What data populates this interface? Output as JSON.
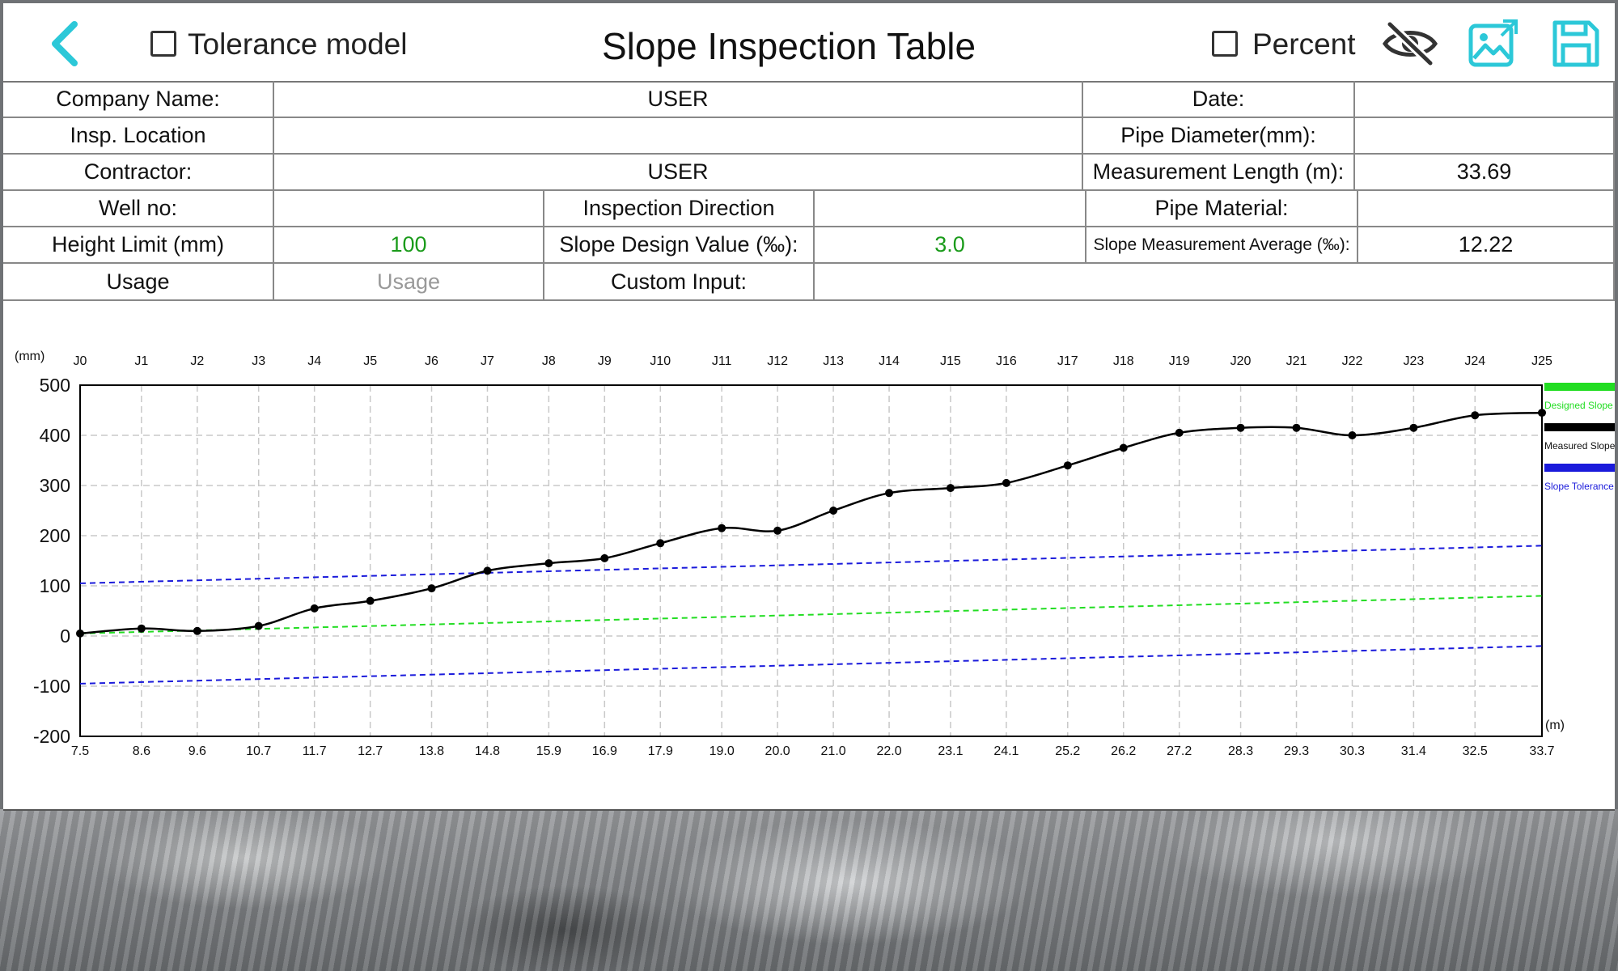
{
  "header": {
    "tolerance_label": "Tolerance model",
    "title": "Slope Inspection Table",
    "percent_label": "Percent",
    "accent": "#2cc8d8"
  },
  "info": {
    "company_label": "Company Name:",
    "company_value": "USER",
    "date_label": "Date:",
    "date_value": "",
    "location_label": "Insp. Location",
    "location_value": "",
    "pipe_diameter_label": "Pipe Diameter(mm):",
    "pipe_diameter_value": "",
    "contractor_label": "Contractor:",
    "contractor_value": "USER",
    "measurement_length_label": "Measurement Length (m):",
    "measurement_length_value": "33.69",
    "well_label": "Well no:",
    "well_value": "",
    "direction_label": "Inspection Direction",
    "direction_value": "",
    "pipe_material_label": "Pipe Material:",
    "pipe_material_value": "",
    "height_limit_label": "Height Limit (mm)",
    "height_limit_value": "100",
    "slope_design_label": "Slope Design Value (‰):",
    "slope_design_value": "3.0",
    "slope_avg_label": "Slope Measurement Average (‰):",
    "slope_avg_value": "12.22",
    "usage_label": "Usage",
    "usage_placeholder": "Usage",
    "custom_label": "Custom Input:",
    "custom_value": ""
  },
  "chart_data": {
    "type": "line",
    "y_unit": "(mm)",
    "x_unit": "(m)",
    "ylim": [
      -200,
      500
    ],
    "yticks": [
      500,
      400,
      300,
      200,
      100,
      0,
      -100,
      -200
    ],
    "grid": true,
    "legend_position": "right",
    "joints": [
      "J0",
      "J1",
      "J2",
      "J3",
      "J4",
      "J5",
      "J6",
      "J7",
      "J8",
      "J9",
      "J10",
      "J11",
      "J12",
      "J13",
      "J14",
      "J15",
      "J16",
      "J17",
      "J18",
      "J19",
      "J20",
      "J21",
      "J22",
      "J23",
      "J24",
      "J25"
    ],
    "x": [
      7.5,
      8.6,
      9.6,
      10.7,
      11.7,
      12.7,
      13.8,
      14.8,
      15.9,
      16.9,
      17.9,
      19.0,
      20.0,
      21.0,
      22.0,
      23.1,
      24.1,
      25.2,
      26.2,
      27.2,
      28.3,
      29.3,
      30.3,
      31.4,
      32.5,
      33.7
    ],
    "x_tick_labels": [
      "7.5",
      "8.6",
      "9.6",
      "10.7",
      "11.7",
      "12.7",
      "13.8",
      "14.8",
      "15.9",
      "16.9",
      "17.9",
      "19.0",
      "20.0",
      "21.0",
      "22.0",
      "23.1",
      "24.1",
      "25.2",
      "26.2",
      "27.2",
      "28.3",
      "29.3",
      "30.3",
      "31.4",
      "32.5",
      "33.7"
    ],
    "series": [
      {
        "name": "Designed Slope",
        "color": "#22dd22",
        "dashed": true,
        "values_endpoints": [
          5,
          80
        ]
      },
      {
        "name": "Measured Slope",
        "color": "#000000",
        "dashed": false,
        "values": [
          5,
          15,
          10,
          20,
          55,
          70,
          95,
          130,
          145,
          155,
          185,
          215,
          210,
          250,
          285,
          295,
          305,
          340,
          375,
          405,
          415,
          415,
          400,
          415,
          440,
          445
        ]
      },
      {
        "name": "Slope Tolerance",
        "color": "#1a1adb",
        "dashed": true,
        "upper_endpoints": [
          105,
          180
        ],
        "lower_endpoints": [
          -95,
          -20
        ]
      }
    ]
  }
}
